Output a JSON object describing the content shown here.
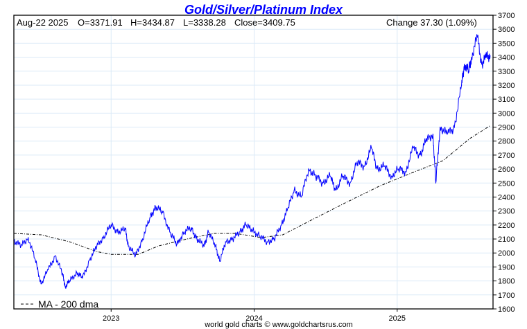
{
  "chart_data": {
    "type": "line",
    "title": "Gold/Silver/Platinum Index",
    "info": {
      "date": "Aug-22  2025",
      "open": "O=3371.91",
      "high": "H=3434.87",
      "low": "L=3338.28",
      "close": "Close=3409.75",
      "change": "Change 37.30 (1.09%)"
    },
    "legend": "MA - 200 dma",
    "footer": "world gold charts © www.goldchartsrus.com",
    "xlim": [
      2022.32,
      2025.67
    ],
    "ylim": [
      1600,
      3700
    ],
    "yticks": [
      1600,
      1700,
      1800,
      1900,
      2000,
      2100,
      2200,
      2300,
      2400,
      2500,
      2600,
      2700,
      2800,
      2900,
      3000,
      3100,
      3200,
      3300,
      3400,
      3500,
      3600,
      3700
    ],
    "xticks": [
      {
        "v": 2023,
        "label": "2023"
      },
      {
        "v": 2024,
        "label": "2024"
      },
      {
        "v": 2025,
        "label": "2025"
      }
    ],
    "colors": {
      "price": "#0000ff",
      "ma": "#000000",
      "title": "#0000ff",
      "grid": "#dbeaf7"
    },
    "series": [
      {
        "name": "Index",
        "x": [
          2022.32,
          2022.37,
          2022.42,
          2022.47,
          2022.51,
          2022.56,
          2022.61,
          2022.66,
          2022.68,
          2022.71,
          2022.76,
          2022.8,
          2022.85,
          2022.9,
          2022.95,
          2023.0,
          2023.05,
          2023.1,
          2023.12,
          2023.17,
          2023.22,
          2023.27,
          2023.31,
          2023.36,
          2023.41,
          2023.46,
          2023.51,
          2023.56,
          2023.6,
          2023.65,
          2023.68,
          2023.73,
          2023.76,
          2023.8,
          2023.85,
          2023.9,
          2023.94,
          2023.99,
          2024.04,
          2024.09,
          2024.14,
          2024.19,
          2024.23,
          2024.28,
          2024.33,
          2024.38,
          2024.43,
          2024.48,
          2024.53,
          2024.57,
          2024.62,
          2024.67,
          2024.72,
          2024.77,
          2024.82,
          2024.86,
          2024.91,
          2024.96,
          2025.01,
          2025.06,
          2025.11,
          2025.16,
          2025.2,
          2025.25,
          2025.27,
          2025.3,
          2025.35,
          2025.4,
          2025.45,
          2025.47,
          2025.5,
          2025.52,
          2025.56,
          2025.59,
          2025.62,
          2025.65
        ],
        "y": [
          2090,
          2050,
          2110,
          1950,
          1780,
          1880,
          1980,
          1850,
          1760,
          1800,
          1860,
          1820,
          1950,
          2050,
          2120,
          2200,
          2150,
          2170,
          2050,
          1980,
          2100,
          2250,
          2330,
          2290,
          2150,
          2060,
          2150,
          2180,
          2100,
          2050,
          2150,
          2050,
          1940,
          2080,
          2100,
          2150,
          2200,
          2160,
          2120,
          2080,
          2100,
          2200,
          2300,
          2450,
          2400,
          2600,
          2550,
          2500,
          2550,
          2450,
          2550,
          2500,
          2650,
          2620,
          2750,
          2600,
          2620,
          2550,
          2600,
          2580,
          2750,
          2700,
          2800,
          2850,
          2500,
          2900,
          2850,
          2900,
          3200,
          3350,
          3300,
          3400,
          3550,
          3350,
          3400,
          3410
        ]
      },
      {
        "name": "MA - 200 dma",
        "x": [
          2022.32,
          2022.51,
          2022.71,
          2022.9,
          2023.0,
          2023.19,
          2023.33,
          2023.53,
          2023.72,
          2023.87,
          2024.05,
          2024.2,
          2024.39,
          2024.64,
          2024.88,
          2025.12,
          2025.32,
          2025.51,
          2025.65
        ],
        "y": [
          2140,
          2130,
          2080,
          2010,
          1990,
          1990,
          2050,
          2100,
          2140,
          2140,
          2110,
          2130,
          2230,
          2360,
          2480,
          2580,
          2660,
          2820,
          2910
        ]
      }
    ]
  }
}
